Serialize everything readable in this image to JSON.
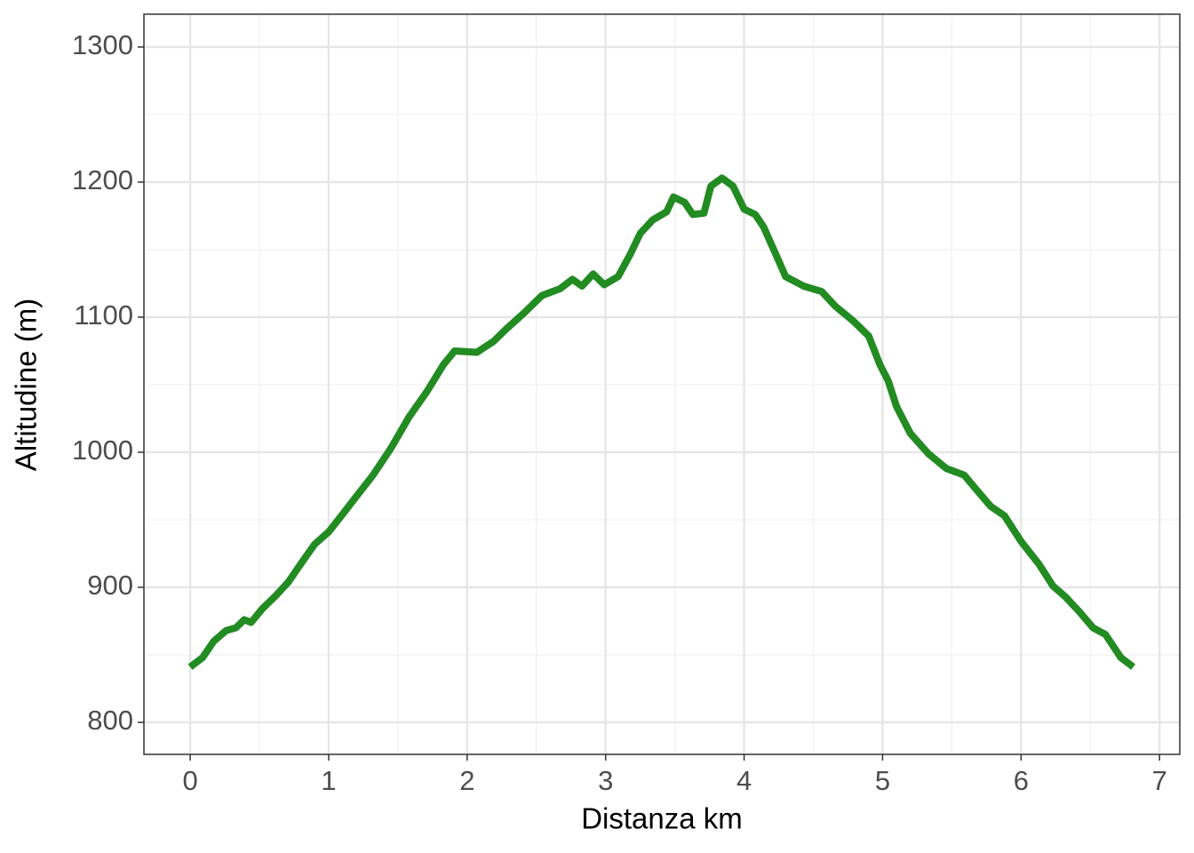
{
  "chart_data": {
    "type": "line",
    "xlabel": "Distanza km",
    "ylabel": "Altitudine (m)",
    "x": [
      0,
      0.09,
      0.17,
      0.26,
      0.33,
      0.39,
      0.44,
      0.52,
      0.62,
      0.71,
      0.81,
      0.9,
      1.0,
      1.1,
      1.19,
      1.32,
      1.45,
      1.58,
      1.71,
      1.83,
      1.91,
      2.07,
      2.19,
      2.28,
      2.41,
      2.54,
      2.67,
      2.76,
      2.83,
      2.91,
      2.99,
      3.09,
      3.18,
      3.25,
      3.34,
      3.44,
      3.49,
      3.57,
      3.63,
      3.71,
      3.76,
      3.84,
      3.92,
      4.0,
      4.08,
      4.14,
      4.24,
      4.3,
      4.43,
      4.56,
      4.66,
      4.79,
      4.9,
      4.98,
      5.04,
      5.1,
      5.2,
      5.33,
      5.46,
      5.59,
      5.68,
      5.78,
      5.88,
      6.0,
      6.13,
      6.23,
      6.32,
      6.42,
      6.52,
      6.61,
      6.72,
      6.81
    ],
    "series": [
      {
        "name": "Altitudine",
        "color": "#228b22",
        "values": [
          841,
          848,
          860,
          868,
          870,
          876,
          874,
          884,
          894,
          904,
          919,
          932,
          941,
          954,
          966,
          983,
          1003,
          1026,
          1045,
          1065,
          1075,
          1074,
          1082,
          1091,
          1103,
          1116,
          1121,
          1128,
          1123,
          1132,
          1124,
          1130,
          1147,
          1162,
          1172,
          1178,
          1189,
          1185,
          1176,
          1177,
          1197,
          1203,
          1197,
          1180,
          1176,
          1167,
          1144,
          1130,
          1123,
          1119,
          1108,
          1097,
          1086,
          1065,
          1053,
          1034,
          1014,
          999,
          988,
          983,
          972,
          960,
          953,
          934,
          917,
          901,
          893,
          882,
          870,
          865,
          848,
          841
        ]
      }
    ],
    "xlim": [
      -0.334,
      7.146
    ],
    "ylim": [
      776.3,
      1324.3
    ],
    "xticks": [
      0,
      1,
      2,
      3,
      4,
      5,
      6,
      7
    ],
    "yticks": [
      800,
      900,
      1000,
      1100,
      1200,
      1300
    ],
    "xminor": [
      0.5,
      1.5,
      2.5,
      3.5,
      4.5,
      5.5,
      6.5
    ],
    "yminor": [
      850,
      950,
      1050,
      1150,
      1250
    ],
    "grid": true
  }
}
